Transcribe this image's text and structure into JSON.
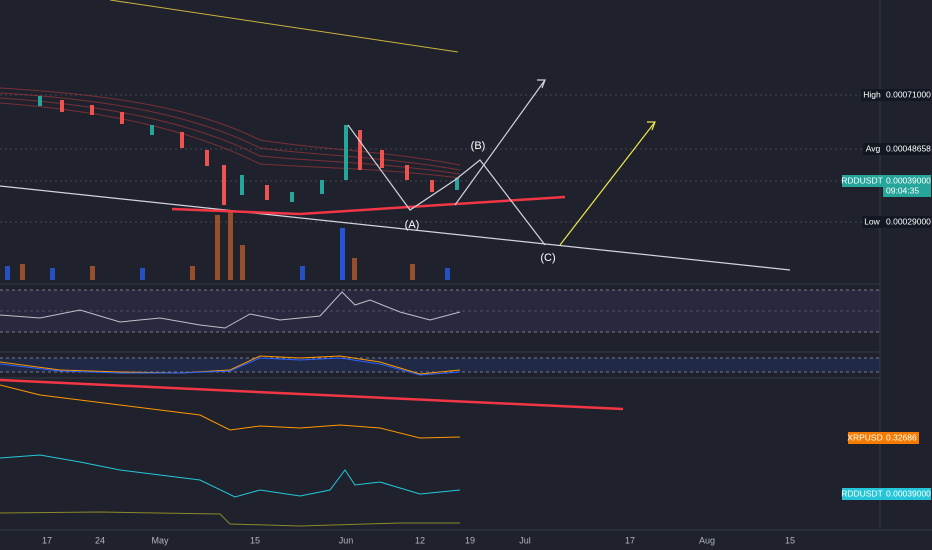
{
  "price_scale": {
    "high": {
      "name": "High",
      "value": "0.00071000"
    },
    "avg": {
      "name": "Avg",
      "value": "0.00048658"
    },
    "last": {
      "name": "RDDUSDT",
      "value": "0.00039000",
      "countdown": "09:04:35"
    },
    "low": {
      "name": "Low",
      "value": "0.00029000"
    }
  },
  "compare_scale": {
    "xrp": {
      "name": "XRPUSD",
      "value": "0.32686"
    },
    "rdd": {
      "name": "RDDUSDT",
      "value": "0.00039000"
    }
  },
  "waves": [
    "(A)",
    "(B)",
    "(C)"
  ],
  "time_axis": [
    "17",
    "24",
    "May",
    "15",
    "Jun",
    "12",
    "19",
    "Jul",
    "17",
    "Aug",
    "15"
  ]
}
